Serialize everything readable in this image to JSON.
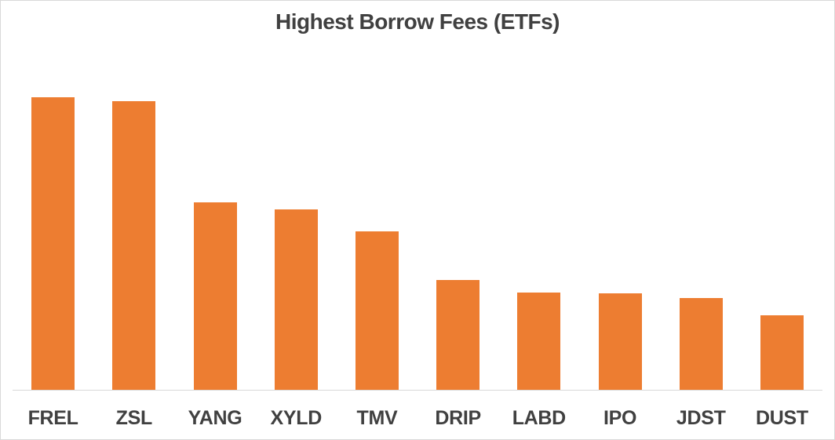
{
  "page": {
    "background": "#FFFFFF",
    "frame_border_color": "#D9D9D9"
  },
  "chart_data": {
    "type": "bar",
    "title": "Highest Borrow Fees (ETFs)",
    "categories": [
      "FREL",
      "ZSL",
      "YANG",
      "XYLD",
      "TMV",
      "DRIP",
      "LABD",
      "IPO",
      "JDST",
      "DUST"
    ],
    "values": [
      100,
      98.7,
      64.0,
      61.8,
      54.3,
      37.6,
      33.3,
      33.1,
      31.5,
      25.5
    ],
    "note": "No y-axis, gridlines, or data labels shown; values estimated from relative bar heights with FREL normalized to 100.",
    "xlabel": "",
    "ylabel": "",
    "ylim": [
      0,
      118
    ],
    "grid": false,
    "legend": "none",
    "bar_color": "#ED7D31",
    "title_color": "#404040",
    "tick_label_color": "#404040",
    "axis_line_color": "#D9D9D9"
  }
}
